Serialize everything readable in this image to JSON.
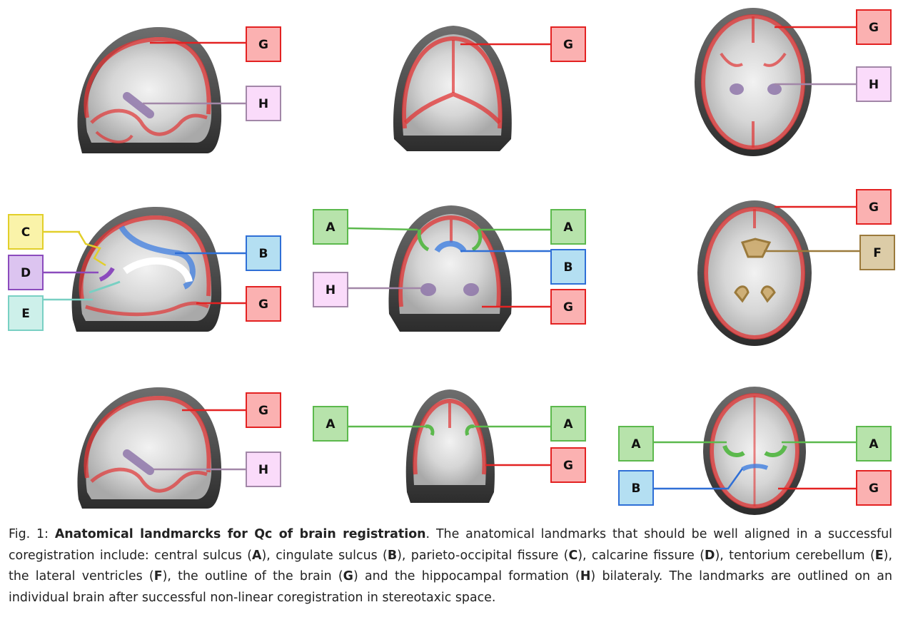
{
  "colors": {
    "G": {
      "stroke": "#e32222",
      "fill": "#fbb1b1"
    },
    "H": {
      "stroke": "#a287a8",
      "fill": "#fadbfa"
    },
    "A": {
      "stroke": "#5cb94d",
      "fill": "#b7e3ab"
    },
    "B": {
      "stroke": "#2f6fd6",
      "fill": "#b4dff2"
    },
    "C": {
      "stroke": "#e2cf2a",
      "fill": "#faf3a9"
    },
    "D": {
      "stroke": "#8b4bbd",
      "fill": "#dcc4f0"
    },
    "E": {
      "stroke": "#79d0c3",
      "fill": "#cdf0ea"
    },
    "F": {
      "stroke": "#9b7a3c",
      "fill": "#dccca7"
    },
    "outline": "#d9383a",
    "brain_dark": "#3a3a3a",
    "brain_light": "#cfcfcf"
  },
  "labels": {
    "A": "A",
    "B": "B",
    "C": "C",
    "D": "D",
    "E": "E",
    "F": "F",
    "G": "G",
    "H": "H"
  },
  "caption": {
    "prefix": "Fig. 1: ",
    "title": "Anatomical landmarcks for Qc of brain registration",
    "p1": ". The anatomical landmarks that should be well aligned in a successful coregistration include: central sulcus (",
    "p2": "), cingulate sulcus (",
    "p3": "), parieto-occipital fissure (",
    "p4": "), calcarine fissure (",
    "p5": "), tentorium cerebellum (",
    "p6": "), the lateral ventricles (",
    "p7": "), the outline of the brain (",
    "p8": ") and the hippocampal formation (",
    "p9": ") bilateraly. The landmarks are outlined on an individual brain after successful non-linear coregistration in stereotaxic space.",
    "kA": "A",
    "kB": "B",
    "kC": "C",
    "kD": "D",
    "kE": "E",
    "kF": "F",
    "kG": "G",
    "kH": "H"
  }
}
